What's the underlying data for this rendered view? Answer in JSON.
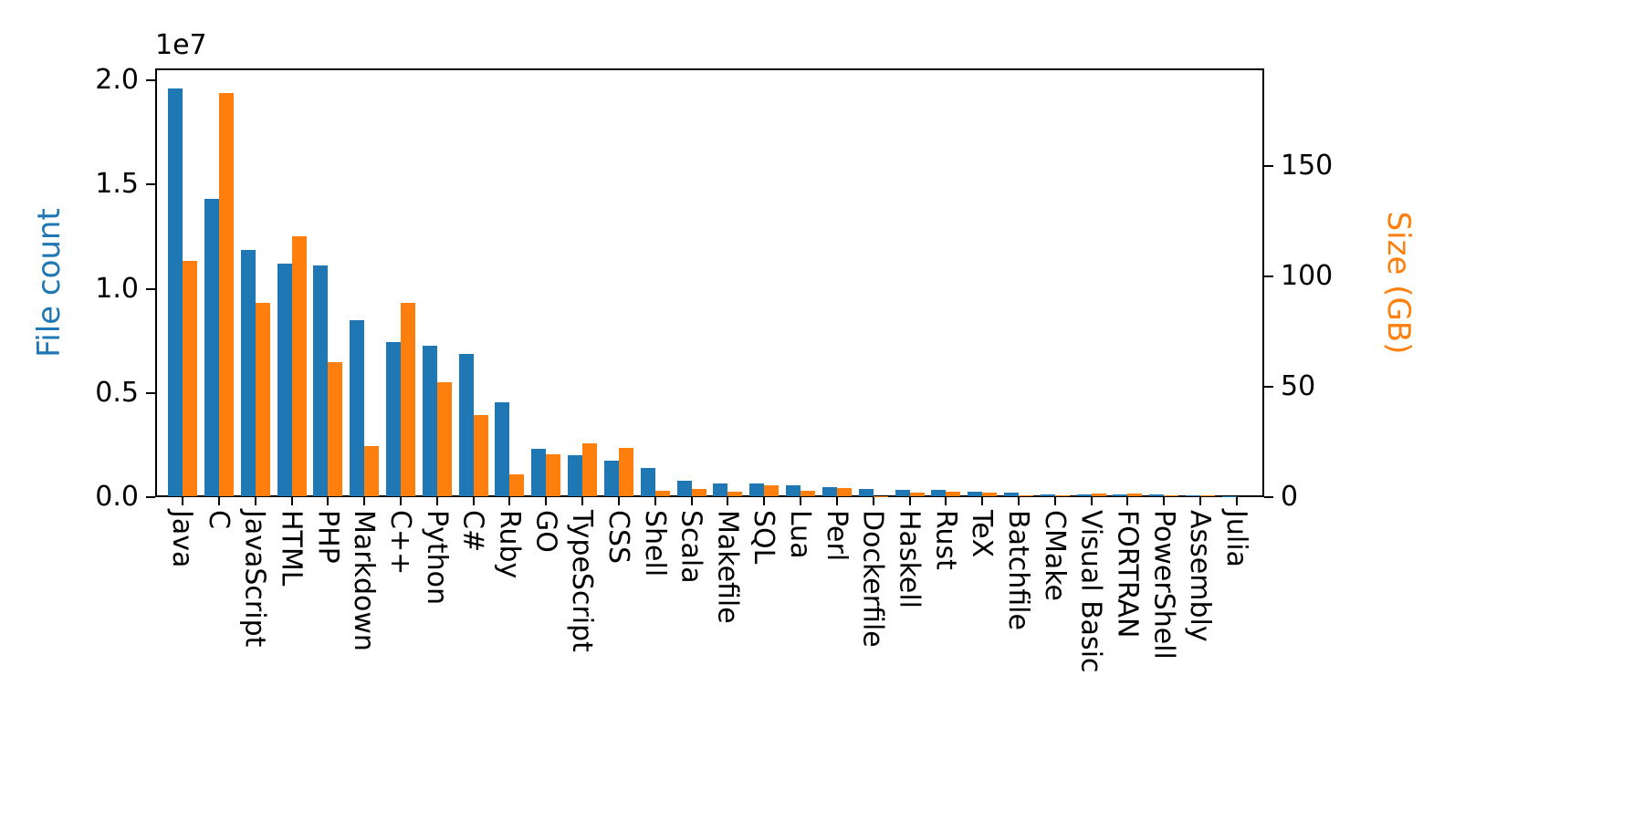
{
  "chart_data": {
    "type": "bar",
    "title": "",
    "categories": [
      "Java",
      "C",
      "JavaScript",
      "HTML",
      "PHP",
      "Markdown",
      "C++",
      "Python",
      "C#",
      "Ruby",
      "GO",
      "TypeScript",
      "CSS",
      "Shell",
      "Scala",
      "Makefile",
      "SQL",
      "Lua",
      "Perl",
      "Dockerfile",
      "Haskell",
      "Rust",
      "TeX",
      "Batchfile",
      "CMake",
      "Visual Basic",
      "FORTRAN",
      "PowerShell",
      "Assembly",
      "Julia"
    ],
    "series": [
      {
        "name": "File count",
        "axis": "left",
        "color": "#1f77b4",
        "values": [
          19600000,
          14300000,
          11850000,
          11200000,
          11100000,
          8500000,
          7450000,
          7250000,
          6850000,
          4550000,
          2300000,
          2000000,
          1750000,
          1400000,
          800000,
          650000,
          650000,
          550000,
          500000,
          400000,
          350000,
          350000,
          250000,
          220000,
          150000,
          130000,
          120000,
          120000,
          80000,
          60000
        ]
      },
      {
        "name": "Size (GB)",
        "axis": "right",
        "color": "#ff7f0e",
        "values": [
          107,
          183,
          88,
          118,
          61,
          23,
          88,
          52,
          37,
          10.5,
          19.5,
          24.5,
          22.5,
          3,
          3.7,
          2.3,
          5.3,
          2.8,
          4.3,
          0.6,
          1.9,
          2.4,
          2.2,
          0.7,
          0.8,
          1.7,
          1.5,
          0.8,
          0.7,
          0.4
        ]
      }
    ],
    "left_axis": {
      "label": "File count",
      "color": "#1f77b4",
      "ticks": [
        0,
        5000000,
        10000000,
        15000000,
        20000000
      ],
      "tick_labels": [
        "0.0",
        "0.5",
        "1.0",
        "1.5",
        "2.0"
      ],
      "offset_text": "1e7",
      "range": [
        0,
        20570000
      ]
    },
    "right_axis": {
      "label": "Size (GB)",
      "color": "#ff7f0e",
      "ticks": [
        0,
        50,
        100,
        150
      ],
      "tick_labels": [
        "0",
        "50",
        "100",
        "150"
      ],
      "range": [
        0,
        194.2
      ]
    },
    "x_axis": {
      "label": ""
    },
    "legend": "none",
    "grid": false
  }
}
